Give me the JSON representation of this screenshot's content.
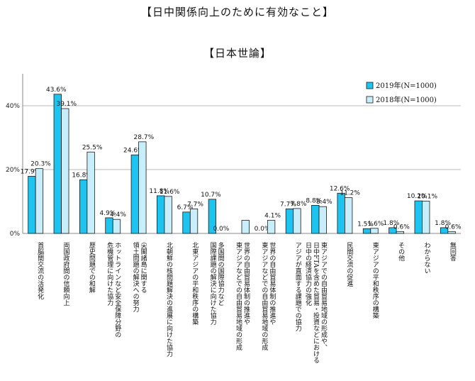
{
  "title": "【日中関係向上のために有効なこと】",
  "subtitle": "【日本世論】",
  "chart_data": {
    "type": "bar",
    "title": "【日中関係向上のために有効なこと】",
    "subtitle": "【日本世論】",
    "ylim": [
      0,
      50
    ],
    "yticks": [
      "0%",
      "20%",
      "40%"
    ],
    "ytick_values": [
      0,
      20,
      40
    ],
    "grid": true,
    "legend_position": "top-right",
    "categories": [
      [
        "首脳間交流の活発化"
      ],
      [
        "両国政府間の信頼向上"
      ],
      [
        "歴史問題での和解"
      ],
      [
        "ホットラインなど安全保障分野の",
        "危機管理に向けた協力"
      ],
      [
        "尖閣諸島に関する",
        "領土問題の解決への努力"
      ],
      [
        "北朝鮮の核問題解決の進展に向けた協力"
      ],
      [
        "北東アジアの平和秩序の構築"
      ],
      [
        "多国間の国際協力など",
        "国際課題の解決に向けた協力"
      ],
      [
        "世界の自由貿易体制の推進や",
        "東アジアなどでの自由貿易地域の形成"
      ],
      [
        "世界の自由貿易体制の推進や",
        "東アジアなどでの自由貿易地域の形成"
      ],
      [
        "アジアが直面する課題での協力"
      ],
      [
        "東アジアでの自由貿易地域の形成や、",
        "日中FTAを含めた貿易・投資などにおける",
        "日中の経済協力の強化"
      ],
      [
        "民間交流の促進"
      ],
      [
        "東アジアの平和秩序の構築"
      ],
      [
        "その他"
      ],
      [
        "わからない"
      ],
      [
        "無回答"
      ]
    ],
    "series": [
      {
        "name": "2019年(N=1000)",
        "color": "#1EC4F0",
        "values": [
          17.9,
          43.6,
          16.8,
          4.9,
          24.6,
          11.8,
          6.7,
          10.7,
          0.0,
          0.0,
          7.7,
          8.8,
          12.6,
          1.5,
          1.8,
          10.2,
          1.8
        ],
        "labels": [
          "17.9%",
          "43.6%",
          "16.8%",
          "4.9%",
          "24.6%",
          "11.8%",
          "6.7%",
          "10.7%",
          "0.0%",
          "0.0%",
          "7.7%",
          "8.8%",
          "12.6%",
          "1.5%",
          "1.8%",
          "10.2%",
          "1.8%"
        ],
        "label_shown": [
          true,
          true,
          true,
          true,
          true,
          true,
          true,
          true,
          false,
          true,
          true,
          true,
          true,
          true,
          true,
          true,
          true
        ]
      },
      {
        "name": "2018年(N=1000)",
        "color": "#C9EEFB",
        "values": [
          20.3,
          39.1,
          25.5,
          4.4,
          28.7,
          11.6,
          7.7,
          0.0,
          4.1,
          4.1,
          7.8,
          8.4,
          11.2,
          1.6,
          0.6,
          10.1,
          0.6
        ],
        "labels": [
          "20.3%",
          "39.1%",
          "25.5%",
          "4.4%",
          "28.7%",
          "11.6%",
          "7.7%",
          "0.0%",
          "4.1%",
          "4.1%",
          "7.8%",
          "8.4%",
          "11.2%",
          "1.6%",
          "0.6%",
          "10.1%",
          "0.6%"
        ],
        "label_shown": [
          true,
          true,
          true,
          true,
          true,
          true,
          true,
          true,
          false,
          true,
          true,
          true,
          true,
          true,
          true,
          true,
          true
        ]
      }
    ]
  }
}
